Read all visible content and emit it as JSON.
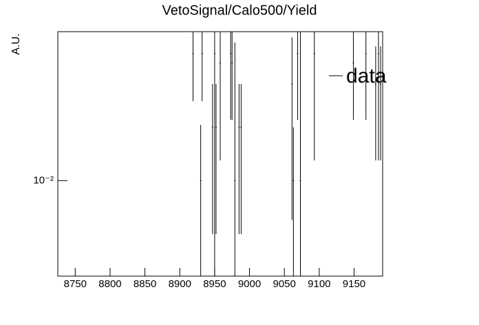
{
  "chart_data": {
    "type": "errorbar",
    "title": "VetoSignal/Calo500/Yield",
    "y_label": "A.U.",
    "log_y": true,
    "x": [
      8919,
      8930,
      8932,
      8947,
      8950,
      8952,
      8958,
      8973,
      8975,
      8979,
      8985,
      8988,
      9061,
      9063,
      9069,
      9073,
      9093,
      9149,
      9167,
      9181,
      9185,
      9188
    ],
    "series": [
      {
        "name": "data",
        "color": "#000000",
        "values": [
          0.052,
          0.01,
          0.052,
          0.02,
          0.052,
          0.02,
          0.046,
          0.052,
          0.046,
          0.01,
          0.02,
          0.02,
          0.035,
          0.01,
          0.052,
          0.01,
          0.052,
          0.046,
          0.052,
          0.035,
          0.052,
          0.035
        ],
        "errors": [
          0.024,
          0.0106,
          0.024,
          0.015,
          0.06,
          0.015,
          0.033,
          0.03,
          0.024,
          0.05,
          0.015,
          0.015,
          0.029,
          0.01,
          0.03,
          0.06,
          0.039,
          0.024,
          0.03,
          0.022,
          0.039,
          0.022
        ]
      }
    ],
    "xlim": [
      8725,
      9191
    ],
    "ylim": [
      0.0029,
      0.069
    ],
    "xticks": [
      8750,
      8800,
      8850,
      8900,
      8950,
      9000,
      9050,
      9100,
      9150
    ],
    "yticks": [
      {
        "value": 0.01,
        "label": "10⁻²"
      }
    ],
    "legend": "upper right"
  }
}
